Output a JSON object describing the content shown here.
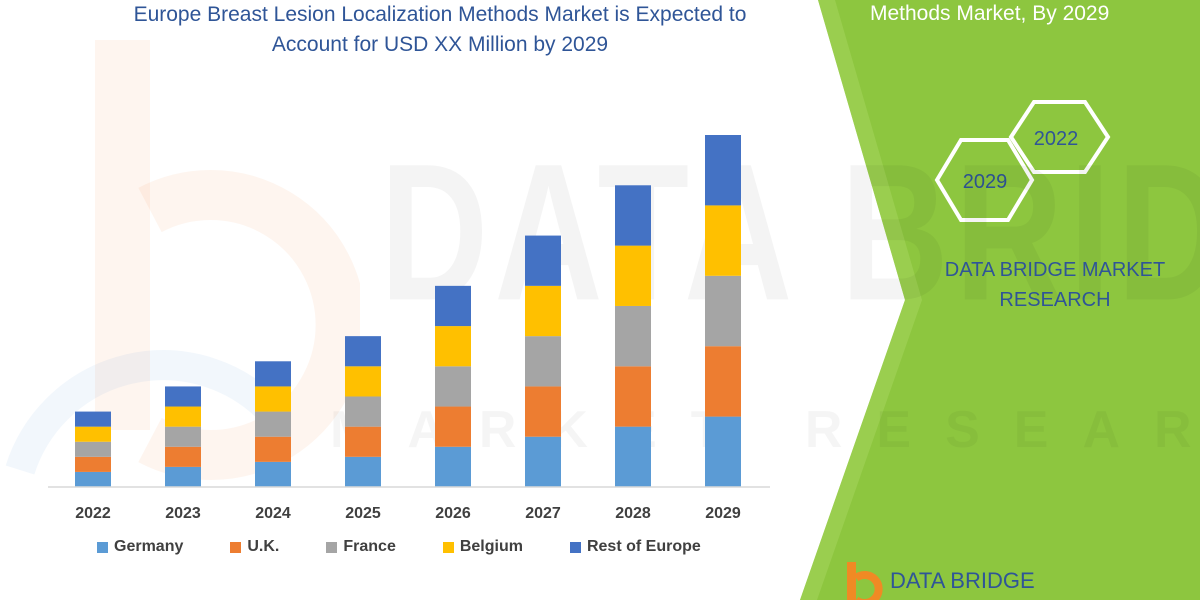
{
  "title": "Europe Breast Lesion Localization Methods Market is Expected to Account for USD XX Million by 2029",
  "title_lines": [
    "Europe Breast Lesion Localization Methods Market is Expected to",
    "Account for USD XX Million by 2029"
  ],
  "watermark": {
    "main": "DATA BRIDGE",
    "sub": "MARKET RESEARCH"
  },
  "right_panel": {
    "heading": "Methods Market, By 2029",
    "hex_front": "2029",
    "hex_back": "2022",
    "brand_line1": "DATA BRIDGE MARKET",
    "brand_line2": "RESEARCH",
    "logo_text": "DATA BRIDGE"
  },
  "colors": {
    "panel_green": "#8dc63f",
    "brand_blue": "#2f5597",
    "germany": "#5b9bd5",
    "uk": "#ed7d31",
    "france": "#a5a5a5",
    "belgium": "#ffc000",
    "rest_of_europe": "#4472c4"
  },
  "chart_data": {
    "type": "bar",
    "stacked": true,
    "categories": [
      "2022",
      "2023",
      "2024",
      "2025",
      "2026",
      "2027",
      "2028",
      "2029"
    ],
    "series": [
      {
        "name": "Germany",
        "color": "#5b9bd5",
        "values": [
          15,
          20,
          25,
          30,
          40,
          50,
          60,
          70
        ]
      },
      {
        "name": "U.K.",
        "color": "#ed7d31",
        "values": [
          15,
          20,
          25,
          30,
          40,
          50,
          60,
          70
        ]
      },
      {
        "name": "France",
        "color": "#a5a5a5",
        "values": [
          15,
          20,
          25,
          30,
          40,
          50,
          60,
          70
        ]
      },
      {
        "name": "Belgium",
        "color": "#ffc000",
        "values": [
          15,
          20,
          25,
          30,
          40,
          50,
          60,
          70
        ]
      },
      {
        "name": "Rest of Europe",
        "color": "#4472c4",
        "values": [
          15,
          20,
          25,
          30,
          40,
          50,
          60,
          70
        ]
      }
    ],
    "xlabel": "",
    "ylabel": "",
    "ylim": [
      0,
      350
    ],
    "grid": false,
    "legend": "bottom"
  }
}
